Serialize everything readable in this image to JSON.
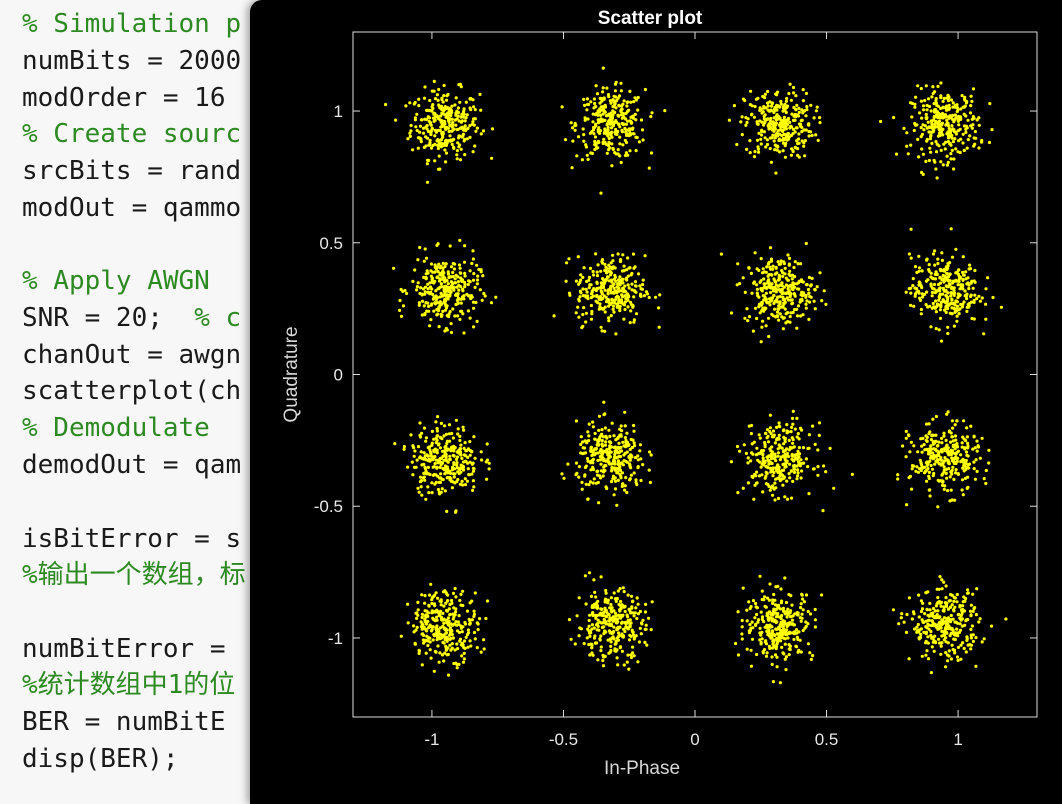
{
  "editor": {
    "lines": [
      {
        "text": "% Simulation p",
        "comment": true
      },
      {
        "text": "numBits = 2000"
      },
      {
        "text": "modOrder = 16"
      },
      {
        "text": "% Create sourc",
        "comment": true
      },
      {
        "text": "srcBits = rand"
      },
      {
        "text": "modOut = qammo"
      },
      {
        "text": ""
      },
      {
        "text": "% Apply AWGN",
        "comment": true
      },
      {
        "text": "SNR = 20;  ",
        "comment_tail": "% c"
      },
      {
        "text": "chanOut = awgn"
      },
      {
        "text": "scatterplot(ch"
      },
      {
        "text": "% Demodulate",
        "comment": true
      },
      {
        "text": "demodOut = qam"
      },
      {
        "text": ""
      },
      {
        "text": "isBitError = s"
      },
      {
        "text": "%输出一个数组，标",
        "comment": true
      },
      {
        "text": ""
      },
      {
        "text": "numBitError ="
      },
      {
        "text": "%统计数组中1的位",
        "comment": true
      },
      {
        "text": "BER = numBitE"
      },
      {
        "text": "disp(BER);"
      }
    ]
  },
  "figure": {
    "background": "#000000",
    "marker_color": "#ffff00"
  },
  "chart_data": {
    "type": "scatter",
    "title": "Scatter plot",
    "xlabel": "In-Phase",
    "ylabel": "Quadrature",
    "xlim": [
      -1.3,
      1.3
    ],
    "ylim": [
      -1.3,
      1.3
    ],
    "xticks": [
      -1,
      -0.5,
      0,
      0.5,
      1
    ],
    "yticks": [
      -1,
      -0.5,
      0,
      0.5,
      1
    ],
    "xtick_labels": [
      "-1",
      "-0.5",
      "0",
      "0.5",
      "1"
    ],
    "ytick_labels": [
      "-1",
      "-0.5",
      "0",
      "0.5",
      "1"
    ],
    "grid": false,
    "constellation_points": [
      [
        -0.95,
        0.95
      ],
      [
        -0.32,
        0.95
      ],
      [
        0.32,
        0.95
      ],
      [
        0.95,
        0.95
      ],
      [
        -0.95,
        0.32
      ],
      [
        -0.32,
        0.32
      ],
      [
        0.32,
        0.32
      ],
      [
        0.95,
        0.32
      ],
      [
        -0.95,
        -0.32
      ],
      [
        -0.32,
        -0.32
      ],
      [
        0.32,
        -0.32
      ],
      [
        0.95,
        -0.32
      ],
      [
        -0.95,
        -0.95
      ],
      [
        -0.32,
        -0.95
      ],
      [
        0.32,
        -0.95
      ],
      [
        0.95,
        -0.95
      ]
    ],
    "noise_std": 0.065,
    "points_per_cluster": 300
  }
}
